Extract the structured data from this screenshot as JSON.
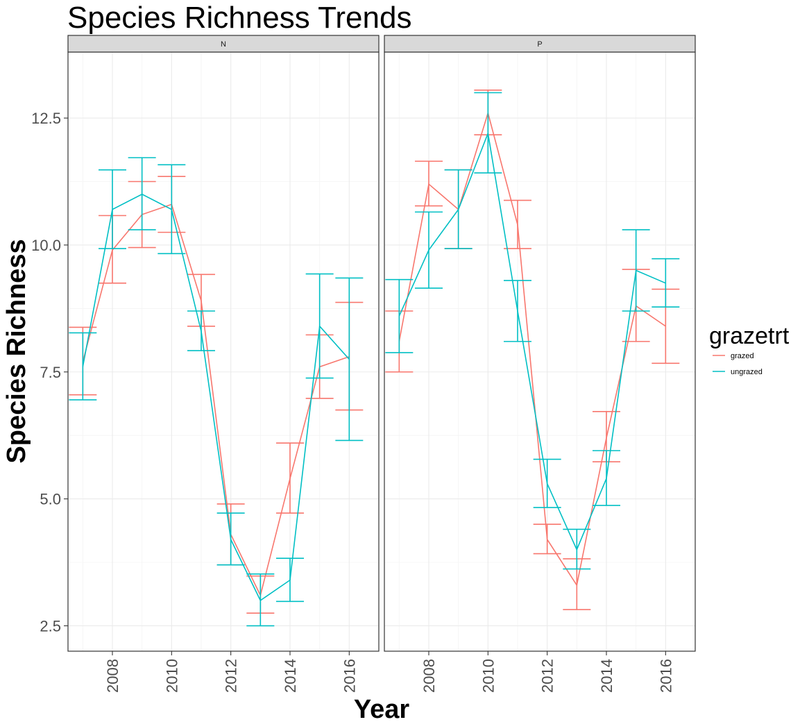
{
  "chart_data": {
    "type": "line",
    "title": "Species Richness Trends",
    "xlabel": "Year",
    "ylabel": "Species Richness",
    "xlim": [
      2006.5,
      2017.0
    ],
    "ylim": [
      2.0,
      13.8
    ],
    "x_ticks": [
      2008,
      2010,
      2012,
      2014,
      2016
    ],
    "y_ticks": [
      2.5,
      5.0,
      7.5,
      10.0,
      12.5
    ],
    "y_tick_labels": [
      "2.5",
      "5.0",
      "7.5",
      "10.0",
      "12.5"
    ],
    "grid": true,
    "error_bars": true,
    "legend": {
      "title": "grazetrt",
      "placement": "right",
      "entries": [
        {
          "name": "grazed",
          "color": "#F8766D"
        },
        {
          "name": "ungrazed",
          "color": "#00BFC4"
        }
      ]
    },
    "facets": [
      {
        "label": "N",
        "series": [
          {
            "name": "grazed",
            "color": "#F8766D",
            "x": [
              2007,
              2008,
              2009,
              2010,
              2011,
              2012,
              2013,
              2014,
              2015,
              2016
            ],
            "y": [
              7.7,
              9.9,
              10.6,
              10.8,
              8.9,
              4.3,
              3.1,
              5.4,
              7.6,
              7.8
            ],
            "ymin": [
              7.05,
              9.25,
              9.95,
              10.25,
              8.4,
              3.7,
              2.75,
              4.72,
              6.98,
              6.75
            ],
            "ymax": [
              8.38,
              10.58,
              11.25,
              11.35,
              9.42,
              4.9,
              3.48,
              6.1,
              8.23,
              8.87
            ]
          },
          {
            "name": "ungrazed",
            "color": "#00BFC4",
            "x": [
              2007,
              2008,
              2009,
              2010,
              2011,
              2012,
              2013,
              2014,
              2015,
              2016
            ],
            "y": [
              7.6,
              10.7,
              11.0,
              10.7,
              8.3,
              4.2,
              3.0,
              3.4,
              8.4,
              7.75
            ],
            "ymin": [
              6.95,
              9.93,
              10.3,
              9.83,
              7.92,
              3.7,
              2.5,
              2.98,
              7.38,
              6.15
            ],
            "ymax": [
              8.27,
              11.48,
              11.72,
              11.58,
              8.7,
              4.72,
              3.52,
              3.83,
              9.43,
              9.35
            ]
          }
        ]
      },
      {
        "label": "P",
        "series": [
          {
            "name": "grazed",
            "color": "#F8766D",
            "x": [
              2007,
              2008,
              2009,
              2010,
              2011,
              2012,
              2013,
              2014,
              2015,
              2016
            ],
            "y": [
              8.1,
              11.2,
              10.7,
              12.6,
              10.4,
              4.2,
              3.3,
              6.2,
              8.8,
              8.4
            ],
            "ymin": [
              7.5,
              10.77,
              9.93,
              12.17,
              9.93,
              3.92,
              2.82,
              5.73,
              8.1,
              7.67
            ],
            "ymax": [
              8.7,
              11.65,
              11.48,
              13.05,
              10.88,
              4.5,
              3.82,
              6.72,
              9.52,
              9.13
            ]
          },
          {
            "name": "ungrazed",
            "color": "#00BFC4",
            "x": [
              2007,
              2008,
              2009,
              2010,
              2011,
              2012,
              2013,
              2014,
              2015,
              2016
            ],
            "y": [
              8.6,
              9.9,
              10.7,
              12.2,
              8.7,
              5.3,
              4.0,
              5.4,
              9.5,
              9.25
            ],
            "ymin": [
              7.88,
              9.15,
              9.93,
              11.42,
              8.1,
              4.83,
              3.62,
              4.87,
              8.7,
              8.78
            ],
            "ymax": [
              9.32,
              10.65,
              11.48,
              13.0,
              9.3,
              5.78,
              4.4,
              5.95,
              10.3,
              9.73
            ]
          }
        ]
      }
    ]
  }
}
